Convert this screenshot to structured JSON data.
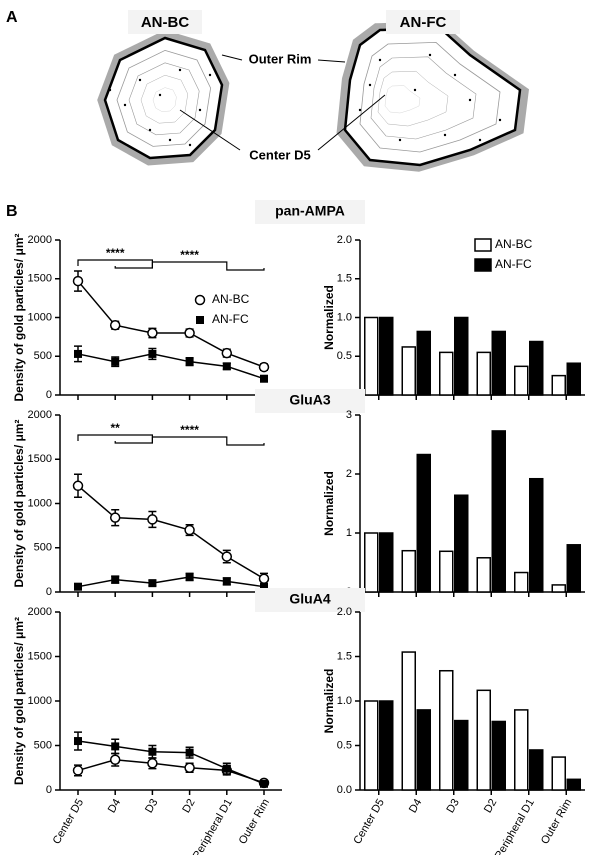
{
  "figure": {
    "panel_a": "A",
    "panel_b": "B",
    "diagram_labels": [
      "AN-BC",
      "AN-FC",
      "Outer Rim",
      "Center D5"
    ]
  },
  "chart_data": [
    {
      "type": "line",
      "title": "pan-AMPA",
      "ylabel": "Density of gold particles/ μm²",
      "categories": [
        null,
        null,
        null,
        null,
        null,
        null
      ],
      "ylim": [
        0,
        2000
      ],
      "yticks": [
        0,
        500,
        1000,
        1500,
        2000
      ],
      "legend": "upper right",
      "annotations": [
        "****",
        "****"
      ],
      "series": [
        {
          "name": "AN-BC",
          "color": "#000000",
          "marker": "circle",
          "values": [
            1470,
            900,
            800,
            800,
            540,
            360
          ],
          "errors": [
            130,
            50,
            60,
            50,
            50,
            40
          ]
        },
        {
          "name": "AN-FC",
          "color": "#000000",
          "marker": "square",
          "values": [
            530,
            430,
            530,
            430,
            370,
            210
          ],
          "errors": [
            100,
            60,
            70,
            50,
            40,
            30
          ]
        }
      ]
    },
    {
      "type": "bar",
      "ylabel": "Normalized",
      "categories": [
        null,
        null,
        null,
        null,
        null,
        null
      ],
      "ylim": [
        0,
        2
      ],
      "yticks": [
        {
          "value": 0,
          "label": "0.0"
        },
        {
          "value": 0.5,
          "label": "0.5"
        },
        {
          "value": 1,
          "label": "1.0"
        },
        {
          "value": 1.5,
          "label": "1.5"
        },
        {
          "value": 2,
          "label": "2.0"
        }
      ],
      "legend": "upper right",
      "series": [
        {
          "name": "AN-BC",
          "color": "#ffffff",
          "values": [
            1.0,
            0.62,
            0.55,
            0.55,
            0.37,
            0.25
          ]
        },
        {
          "name": "AN-FC",
          "color": "#000000",
          "values": [
            1.0,
            0.82,
            1.0,
            0.82,
            0.69,
            0.41
          ]
        }
      ]
    },
    {
      "type": "line",
      "title": "GluA3",
      "ylabel": "Density of gold particles/ μm²",
      "categories": [
        null,
        null,
        null,
        null,
        null,
        null
      ],
      "ylim": [
        0,
        2000
      ],
      "yticks": [
        0,
        500,
        1000,
        1500,
        2000
      ],
      "annotations": [
        "**",
        "****"
      ],
      "series": [
        {
          "color": "#000000",
          "marker": "circle",
          "values": [
            1200,
            840,
            820,
            700,
            400,
            150
          ],
          "errors": [
            130,
            90,
            90,
            60,
            70,
            60
          ]
        },
        {
          "color": "#000000",
          "marker": "square",
          "values": [
            60,
            140,
            100,
            170,
            120,
            60
          ],
          "errors": [
            30,
            40,
            30,
            40,
            40,
            30
          ]
        }
      ]
    },
    {
      "type": "bar",
      "ylabel": "Normalized",
      "categories": [
        null,
        null,
        null,
        null,
        null,
        null
      ],
      "ylim": [
        0,
        3
      ],
      "yticks": [
        0,
        1,
        2,
        3
      ],
      "series": [
        {
          "color": "#ffffff",
          "values": [
            1.0,
            0.7,
            0.69,
            0.58,
            0.33,
            0.12
          ]
        },
        {
          "color": "#000000",
          "values": [
            1.0,
            2.33,
            1.64,
            2.73,
            1.92,
            0.8
          ]
        }
      ]
    },
    {
      "type": "line",
      "title": "GluA4",
      "ylabel": "Density of gold particles/ μm²",
      "categories": [
        "Center D5",
        "D4",
        "D3",
        "D2",
        "Peripheral D1",
        "Outer Rim"
      ],
      "ylim": [
        0,
        2000
      ],
      "yticks": [
        0,
        500,
        1000,
        1500,
        2000
      ],
      "series": [
        {
          "color": "#000000",
          "marker": "circle",
          "values": [
            220,
            340,
            300,
            250,
            220,
            80
          ],
          "errors": [
            60,
            70,
            60,
            50,
            50,
            20
          ]
        },
        {
          "color": "#000000",
          "marker": "square",
          "values": [
            550,
            490,
            430,
            420,
            240,
            70
          ],
          "errors": [
            100,
            80,
            70,
            60,
            60,
            20
          ]
        }
      ]
    },
    {
      "type": "bar",
      "ylabel": "Normalized",
      "categories": [
        "Center D5",
        "D4",
        "D3",
        "D2",
        "Peripheral D1",
        "Outer Rim"
      ],
      "ylim": [
        0,
        2
      ],
      "yticks": [
        {
          "value": 0,
          "label": "0.0"
        },
        {
          "value": 0.5,
          "label": "0.5"
        },
        {
          "value": 1,
          "label": "1.0"
        },
        {
          "value": 1.5,
          "label": "1.5"
        },
        {
          "value": 2,
          "label": "2.0"
        }
      ],
      "series": [
        {
          "color": "#ffffff",
          "values": [
            1.0,
            1.55,
            1.34,
            1.12,
            0.9,
            0.37
          ]
        },
        {
          "color": "#000000",
          "values": [
            1.0,
            0.9,
            0.78,
            0.77,
            0.45,
            0.12
          ]
        }
      ]
    }
  ]
}
